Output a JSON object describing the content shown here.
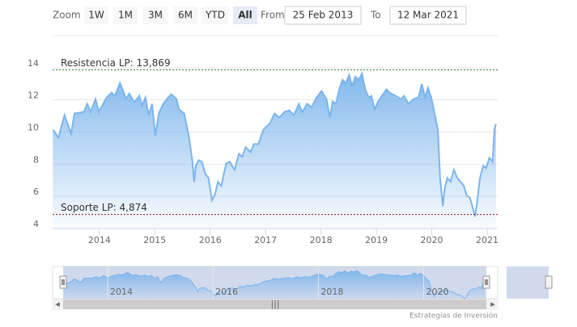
{
  "chart_data": {
    "type": "area",
    "color": "#7cb5ec",
    "x": [
      2013.16,
      2013.26,
      2013.37,
      2013.49,
      2013.55,
      2013.72,
      2013.78,
      2013.84,
      2013.93,
      2013.99,
      2014.13,
      2014.22,
      2014.28,
      2014.37,
      2014.42,
      2014.48,
      2014.54,
      2014.63,
      2014.72,
      2014.77,
      2014.83,
      2014.89,
      2014.95,
      2015.01,
      2015.07,
      2015.15,
      2015.24,
      2015.3,
      2015.39,
      2015.44,
      2015.53,
      2015.62,
      2015.68,
      2015.71,
      2015.74,
      2015.79,
      2015.85,
      2015.91,
      2015.97,
      2016.03,
      2016.09,
      2016.14,
      2016.2,
      2016.23,
      2016.29,
      2016.35,
      2016.44,
      2016.52,
      2016.58,
      2016.64,
      2016.73,
      2016.79,
      2016.87,
      2016.96,
      2017.08,
      2017.16,
      2017.25,
      2017.34,
      2017.43,
      2017.51,
      2017.6,
      2017.66,
      2017.75,
      2017.83,
      2017.92,
      2018.01,
      2018.1,
      2018.16,
      2018.21,
      2018.27,
      2018.33,
      2018.39,
      2018.45,
      2018.51,
      2018.56,
      2018.62,
      2018.68,
      2018.74,
      2018.8,
      2018.86,
      2018.91,
      2018.97,
      2019.03,
      2019.12,
      2019.18,
      2019.26,
      2019.35,
      2019.44,
      2019.5,
      2019.58,
      2019.67,
      2019.76,
      2019.82,
      2019.88,
      2019.93,
      2019.99,
      2020.05,
      2020.11,
      2020.15,
      2020.2,
      2020.23,
      2020.28,
      2020.34,
      2020.4,
      2020.46,
      2020.52,
      2020.58,
      2020.63,
      2020.69,
      2020.75,
      2020.78,
      2020.81,
      2020.87,
      2020.93,
      2020.98,
      2021.04,
      2021.1,
      2021.13,
      2021.16
    ],
    "values": [
      10.15,
      9.65,
      11.05,
      9.9,
      11.15,
      11.25,
      11.75,
      11.25,
      12.05,
      11.25,
      12.15,
      12.45,
      12.25,
      13.05,
      12.65,
      12.05,
      12.4,
      11.85,
      12.25,
      11.65,
      12.15,
      11.05,
      11.75,
      9.75,
      11.15,
      11.75,
      12.15,
      12.35,
      12.05,
      11.4,
      11.15,
      9.65,
      8.15,
      6.9,
      7.9,
      8.25,
      8.15,
      7.4,
      7.15,
      5.75,
      6.15,
      6.9,
      6.65,
      7.15,
      8.05,
      8.15,
      7.65,
      8.65,
      8.45,
      9.05,
      8.75,
      9.25,
      9.25,
      10.15,
      10.55,
      11.15,
      10.9,
      11.25,
      11.35,
      11.05,
      11.75,
      11.25,
      11.75,
      11.55,
      12.15,
      12.55,
      12.05,
      10.9,
      11.9,
      11.75,
      12.65,
      13.25,
      13.05,
      13.55,
      12.85,
      13.45,
      13.25,
      13.65,
      12.65,
      12.15,
      12.25,
      11.4,
      11.9,
      12.35,
      12.65,
      12.4,
      12.25,
      12.05,
      12.25,
      11.75,
      12.05,
      12.15,
      13.0,
      12.15,
      12.75,
      12.15,
      11.15,
      10.15,
      7.15,
      5.4,
      6.4,
      7.15,
      6.9,
      7.65,
      7.15,
      6.9,
      6.65,
      6.05,
      5.9,
      5.15,
      4.75,
      5.4,
      7.15,
      7.9,
      7.75,
      8.4,
      8.15,
      10.15,
      10.5
    ],
    "xlim": [
      2013.155,
      2021.19
    ],
    "ylim": [
      4,
      16
    ],
    "xticks": [
      2014,
      2015,
      2016,
      2017,
      2018,
      2019,
      2020,
      2021
    ],
    "yticks": [
      4,
      6,
      8,
      10,
      12,
      14
    ],
    "grid": true,
    "annotations": [
      {
        "value": 13.869,
        "label": "Resistencia LP: 13,869",
        "color": "#2e7d32"
      },
      {
        "value": 4.874,
        "label": "Soporte LP: 4,874",
        "color": "#8b1a1a"
      }
    ],
    "navigator": {
      "xticks": [
        2014,
        2016,
        2018,
        2020
      ]
    }
  },
  "toolbar": {
    "zoom_label": "Zoom",
    "buttons": [
      "1W",
      "1M",
      "3M",
      "6M",
      "YTD",
      "All"
    ],
    "selected": 5,
    "from_label": "From",
    "from": "25 Feb 2013",
    "to_label": "To",
    "to": "12 Mar 2021"
  },
  "credits": "Estrategias de Inversión"
}
